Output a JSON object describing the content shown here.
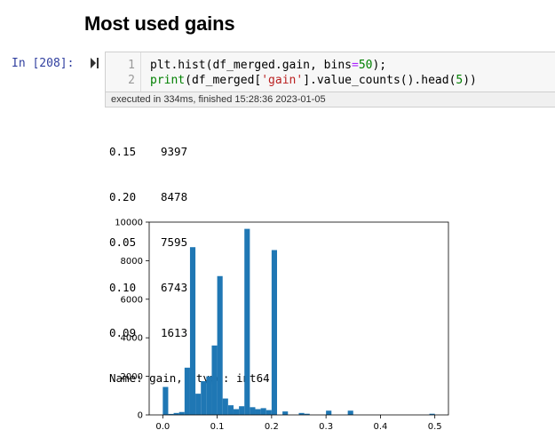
{
  "heading": "Most used gains",
  "cell": {
    "prompt": "In [208]:",
    "line_numbers": [
      "1",
      "2"
    ],
    "execution_info": "executed in 334ms, finished 15:28:36 2023-01-05"
  },
  "output": {
    "rows": [
      {
        "key": "0.15",
        "value": "9397"
      },
      {
        "key": "0.20",
        "value": "8478"
      },
      {
        "key": "0.05",
        "value": "7595"
      },
      {
        "key": "0.10",
        "value": "6743"
      },
      {
        "key": "0.09",
        "value": "1613"
      }
    ],
    "footer": "Name: gain, dtype: int64"
  },
  "chart_data": {
    "type": "bar",
    "title": "",
    "xlabel": "",
    "ylabel": "",
    "xlim": [
      -0.025,
      0.525
    ],
    "ylim": [
      0,
      10000
    ],
    "xticks": [
      "0.0",
      "0.1",
      "0.2",
      "0.3",
      "0.4",
      "0.5"
    ],
    "yticks": [
      "0",
      "2000",
      "4000",
      "6000",
      "8000",
      "10000"
    ],
    "bar_color": "#1f77b4",
    "bins": [
      {
        "x0": 0.0,
        "x1": 0.01,
        "value": 1450
      },
      {
        "x0": 0.01,
        "x1": 0.02,
        "value": 50
      },
      {
        "x0": 0.02,
        "x1": 0.03,
        "value": 100
      },
      {
        "x0": 0.03,
        "x1": 0.04,
        "value": 150
      },
      {
        "x0": 0.04,
        "x1": 0.05,
        "value": 2450
      },
      {
        "x0": 0.05,
        "x1": 0.06,
        "value": 8700
      },
      {
        "x0": 0.06,
        "x1": 0.07,
        "value": 1100
      },
      {
        "x0": 0.07,
        "x1": 0.08,
        "value": 1750
      },
      {
        "x0": 0.08,
        "x1": 0.09,
        "value": 2000
      },
      {
        "x0": 0.09,
        "x1": 0.1,
        "value": 3600
      },
      {
        "x0": 0.1,
        "x1": 0.11,
        "value": 7200
      },
      {
        "x0": 0.11,
        "x1": 0.12,
        "value": 850
      },
      {
        "x0": 0.12,
        "x1": 0.13,
        "value": 500
      },
      {
        "x0": 0.13,
        "x1": 0.14,
        "value": 300
      },
      {
        "x0": 0.14,
        "x1": 0.15,
        "value": 450
      },
      {
        "x0": 0.15,
        "x1": 0.16,
        "value": 9650
      },
      {
        "x0": 0.16,
        "x1": 0.17,
        "value": 400
      },
      {
        "x0": 0.17,
        "x1": 0.18,
        "value": 300
      },
      {
        "x0": 0.18,
        "x1": 0.19,
        "value": 350
      },
      {
        "x0": 0.19,
        "x1": 0.2,
        "value": 250
      },
      {
        "x0": 0.2,
        "x1": 0.21,
        "value": 8550
      },
      {
        "x0": 0.22,
        "x1": 0.23,
        "value": 180
      },
      {
        "x0": 0.25,
        "x1": 0.26,
        "value": 100
      },
      {
        "x0": 0.26,
        "x1": 0.27,
        "value": 60
      },
      {
        "x0": 0.3,
        "x1": 0.31,
        "value": 220
      },
      {
        "x0": 0.34,
        "x1": 0.35,
        "value": 220
      },
      {
        "x0": 0.49,
        "x1": 0.5,
        "value": 60
      }
    ]
  }
}
